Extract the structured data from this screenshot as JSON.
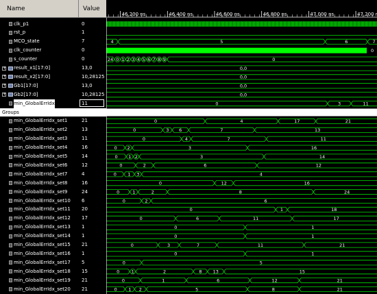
{
  "header": {
    "name_label": "Name",
    "value_label": "Value"
  },
  "timeline": {
    "ticks": [
      "46,200 ns",
      "46,400 ns",
      "46,600 ns",
      "46,800 ns",
      "47,000 ns",
      "47,200 ns"
    ]
  },
  "signals": [
    {
      "name": "clk_p1",
      "value": "0",
      "icon": "wire"
    },
    {
      "name": "rst_p",
      "value": "1",
      "icon": "wire"
    },
    {
      "name": "MCO_state",
      "value": "7",
      "icon": "wire"
    },
    {
      "name": "clk_counter",
      "value": "0",
      "icon": "wire"
    },
    {
      "name": "s_counter",
      "value": "0",
      "icon": "wire"
    },
    {
      "name": "result_x1[17:0]",
      "value": "13,0",
      "icon": "bus"
    },
    {
      "name": "result_x2[17:0]",
      "value": "10,28125",
      "icon": "bus"
    },
    {
      "name": "Gb1[17:0]",
      "value": "13,0",
      "icon": "bus"
    },
    {
      "name": "Gb2[17:0]",
      "value": "10,28125",
      "icon": "bus"
    },
    {
      "name": "min_GlobalErrIdx",
      "value": "11",
      "icon": "wire"
    },
    {
      "name": "Groups",
      "value": "",
      "icon": "group"
    },
    {
      "name": "min_GlobalErrIdx_set1",
      "value": "21",
      "icon": "wire"
    },
    {
      "name": "min_GlobalErrIdx_set2",
      "value": "13",
      "icon": "wire"
    },
    {
      "name": "min_GlobalErrIdx_set3",
      "value": "11",
      "icon": "wire"
    },
    {
      "name": "min_GlobalErrIdx_set4",
      "value": "16",
      "icon": "wire"
    },
    {
      "name": "min_GlobalErrIdx_set5",
      "value": "14",
      "icon": "wire"
    },
    {
      "name": "min_GlobalErrIdx_set6",
      "value": "12",
      "icon": "wire"
    },
    {
      "name": "min_GlobalErrIdx_set7",
      "value": "4",
      "icon": "wire"
    },
    {
      "name": "min_GlobalErrIdx_set8",
      "value": "16",
      "icon": "wire"
    },
    {
      "name": "min_GlobalErrIdx_set9",
      "value": "24",
      "icon": "wire"
    },
    {
      "name": "min_GlobalErrIdx_set10",
      "value": "6",
      "icon": "wire"
    },
    {
      "name": "min_GlobalErrIdx_set11",
      "value": "20",
      "icon": "wire"
    },
    {
      "name": "min_GlobalErrIdx_set12",
      "value": "17",
      "icon": "wire"
    },
    {
      "name": "min_GlobalErrIdx_set13",
      "value": "1",
      "icon": "wire"
    },
    {
      "name": "min_GlobalErrIdx_set14",
      "value": "1",
      "icon": "wire"
    },
    {
      "name": "min_GlobalErrIdx_set15",
      "value": "21",
      "icon": "wire"
    },
    {
      "name": "min_GlobalErrIdx_set16",
      "value": "1",
      "icon": "wire"
    },
    {
      "name": "min_GlobalErrIdx_set17",
      "value": "5",
      "icon": "wire"
    },
    {
      "name": "min_GlobalErrIdx_set18",
      "value": "15",
      "icon": "wire"
    },
    {
      "name": "min_GlobalErrIdx_set19",
      "value": "21",
      "icon": "wire"
    },
    {
      "name": "min_GlobalErrIdx_set20",
      "value": "21",
      "icon": "wire"
    }
  ],
  "waves": {
    "mco": [
      "4",
      "5",
      "6",
      "7"
    ],
    "s_counter": [
      "24",
      "0",
      "1",
      "2",
      "3",
      "4",
      "5",
      "6",
      "7",
      "8",
      "9",
      "0"
    ],
    "result_x1": [
      "0,0"
    ],
    "result_x2": [
      "0,0"
    ],
    "gb1": [
      "0,0"
    ],
    "gb2": [
      "0,0"
    ],
    "min_global": [
      "0",
      "3",
      "11"
    ],
    "set1": [
      "0",
      "4",
      "17",
      "21"
    ],
    "set2": [
      "0",
      "3",
      "6",
      "7",
      "13"
    ],
    "set3": [
      "0",
      "4",
      "7",
      "11"
    ],
    "set4": [
      "0",
      "2",
      "3",
      "16"
    ],
    "set5": [
      "0",
      "1",
      "2",
      "3",
      "14"
    ],
    "set6": [
      "0",
      "2",
      "6",
      "12"
    ],
    "set7": [
      "0",
      "1",
      "3",
      "4"
    ],
    "set8": [
      "0",
      "12",
      "16"
    ],
    "set9": [
      "0",
      "1",
      "2",
      "8",
      "24"
    ],
    "set10": [
      "0",
      "2",
      "6"
    ],
    "set11": [
      "0",
      "1",
      "18",
      "20"
    ],
    "set12": [
      "0",
      "6",
      "11",
      "17"
    ],
    "set13": [
      "0",
      "1"
    ],
    "set14": [
      "0",
      "1"
    ],
    "set15": [
      "0",
      "3",
      "7",
      "11",
      "21"
    ],
    "set16": [
      "0",
      "1"
    ],
    "set17": [
      "0",
      "5"
    ],
    "set18": [
      "0",
      "1",
      "2",
      "8",
      "13",
      "15"
    ],
    "set19": [
      "0",
      "1",
      "6",
      "12",
      "21"
    ],
    "set20": [
      "0",
      "1",
      "2",
      "5",
      "8",
      "21"
    ]
  },
  "colors": {
    "wave": "#00e000",
    "highlight": "#00ff00",
    "ruler": "#ffffff"
  }
}
